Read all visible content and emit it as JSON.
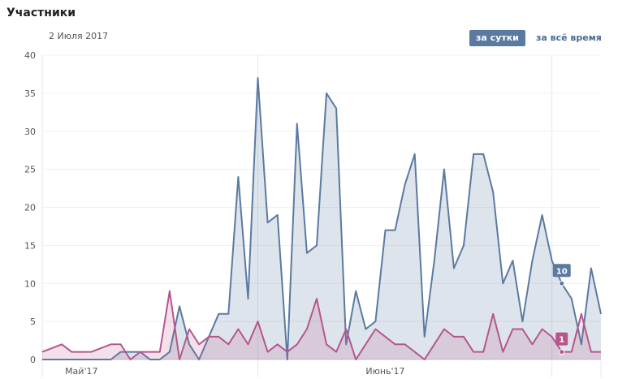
{
  "header": {
    "title": "Участники",
    "date": "2 Июля 2017",
    "toggle_day": "за сутки",
    "toggle_all": "за всё время"
  },
  "colors": {
    "blue": "#5b7aa1",
    "pink": "#b5568d"
  },
  "chart_data": {
    "type": "area",
    "ylim": [
      0,
      40
    ],
    "yticks": [
      0,
      5,
      10,
      15,
      20,
      25,
      30,
      35,
      40
    ],
    "x_labels": [
      {
        "label": "Май'17",
        "index": 4
      },
      {
        "label": "Июнь'17",
        "index": 35
      }
    ],
    "series": [
      {
        "values": [
          0,
          0,
          0,
          0,
          0,
          0,
          0,
          0,
          1,
          1,
          1,
          0,
          0,
          1,
          7,
          2,
          0,
          3,
          6,
          6,
          24,
          8,
          37,
          18,
          19,
          0,
          31,
          14,
          15,
          35,
          33,
          2,
          9,
          4,
          5,
          17,
          17,
          23,
          27,
          3,
          13,
          25,
          12,
          15,
          27,
          27,
          22,
          10,
          13,
          5,
          13,
          19,
          13,
          10,
          8,
          2,
          12,
          6
        ],
        "flag_value": 10,
        "flag_index": 53
      },
      {
        "values": [
          1,
          1.5,
          2,
          1,
          1,
          1,
          1.5,
          2,
          2,
          0,
          1,
          1,
          1,
          9,
          0,
          4,
          2,
          3,
          3,
          2,
          4,
          2,
          5,
          1,
          2,
          1,
          2,
          4,
          8,
          2,
          1,
          4,
          0,
          2,
          4,
          3,
          2,
          2,
          1,
          0,
          2,
          4,
          3,
          3,
          1,
          1,
          6,
          1,
          4,
          4,
          2,
          4,
          3,
          1,
          1,
          6,
          1,
          1
        ],
        "flag_value": 1,
        "flag_index": 53
      }
    ]
  }
}
